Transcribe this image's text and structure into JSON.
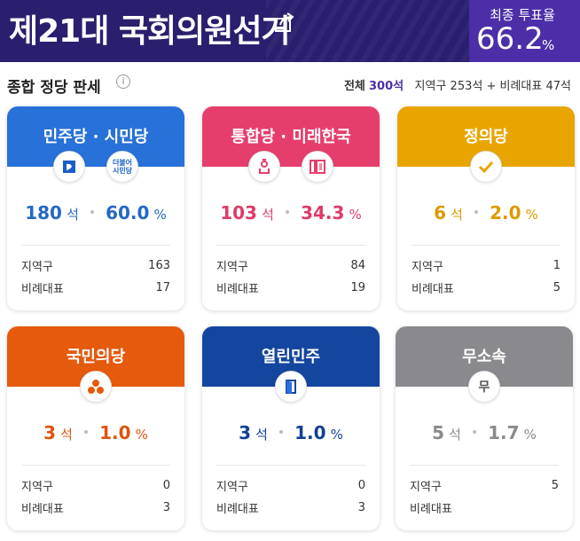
{
  "header": {
    "title": "제21대 국회의원선거",
    "share_icon": "share-icon",
    "turnout_label": "최종 투표율",
    "turnout_value": "66.2",
    "turnout_unit": "%"
  },
  "section": {
    "title": "종합 정당 판세",
    "info_icon": "info-icon",
    "total_label": "전체",
    "total_seats": "300석",
    "district_summary": "지역구 253석",
    "plus": "+",
    "pr_summary": "비례대표 47석"
  },
  "labels": {
    "seat_unit": "석",
    "pct_unit": "%",
    "district": "지역구",
    "pr": "비례대표"
  },
  "parties": [
    {
      "name": "민주당 · 시민당",
      "color": "#2771d8",
      "logo1": "더불어민주당 logo",
      "logo2_text": "더불어\n시민당",
      "seats": "180",
      "percent": "60.0",
      "district": "163",
      "pr": "17"
    },
    {
      "name": "통합당 · 미래한국",
      "color": "#e63e6c",
      "logo1": "미래통합당 logo",
      "logo2": "미래한국당 logo",
      "seats": "103",
      "percent": "34.3",
      "district": "84",
      "pr": "19"
    },
    {
      "name": "정의당",
      "color": "#e8a500",
      "logo1": "check-icon",
      "seats": "6",
      "percent": "2.0",
      "district": "1",
      "pr": "5"
    },
    {
      "name": "국민의당",
      "color": "#e55a0c",
      "logo1": "국민의당 logo",
      "seats": "3",
      "percent": "1.0",
      "district": "0",
      "pr": "3"
    },
    {
      "name": "열린민주",
      "color": "#1446a0",
      "logo1": "열린민주당 logo",
      "seats": "3",
      "percent": "1.0",
      "district": "0",
      "pr": "3"
    },
    {
      "name": "무소속",
      "color": "#8a8a8e",
      "logo1_text": "무",
      "seats": "5",
      "percent": "1.7",
      "district": "5",
      "pr": ""
    }
  ]
}
